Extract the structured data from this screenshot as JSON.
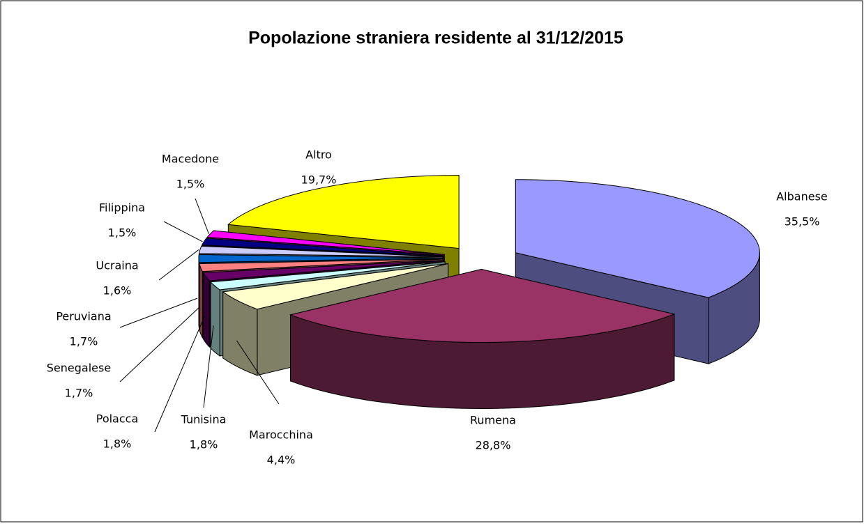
{
  "chart_data": {
    "type": "pie",
    "title": "Popolazione straniera residente al 31/12/2015",
    "categories": [
      "Albanese",
      "Rumena",
      "Marocchina",
      "Tunisina",
      "Polacca",
      "Senegalese",
      "Peruviana",
      "Ucraina",
      "Filippina",
      "Macedone",
      "Altro"
    ],
    "values": [
      35.5,
      28.8,
      4.4,
      1.8,
      1.8,
      1.7,
      1.7,
      1.6,
      1.5,
      1.5,
      19.7
    ],
    "value_labels": [
      "35,5%",
      "28,8%",
      "4,4%",
      "1,8%",
      "1,8%",
      "1,7%",
      "1,7%",
      "1,6%",
      "1,5%",
      "1,5%",
      "19,7%"
    ],
    "colors": [
      "#9999ff",
      "#993366",
      "#ffffcc",
      "#ccffff",
      "#660066",
      "#ff8080",
      "#0066cc",
      "#ccccff",
      "#000080",
      "#ff00ff",
      "#ffff00"
    ]
  }
}
